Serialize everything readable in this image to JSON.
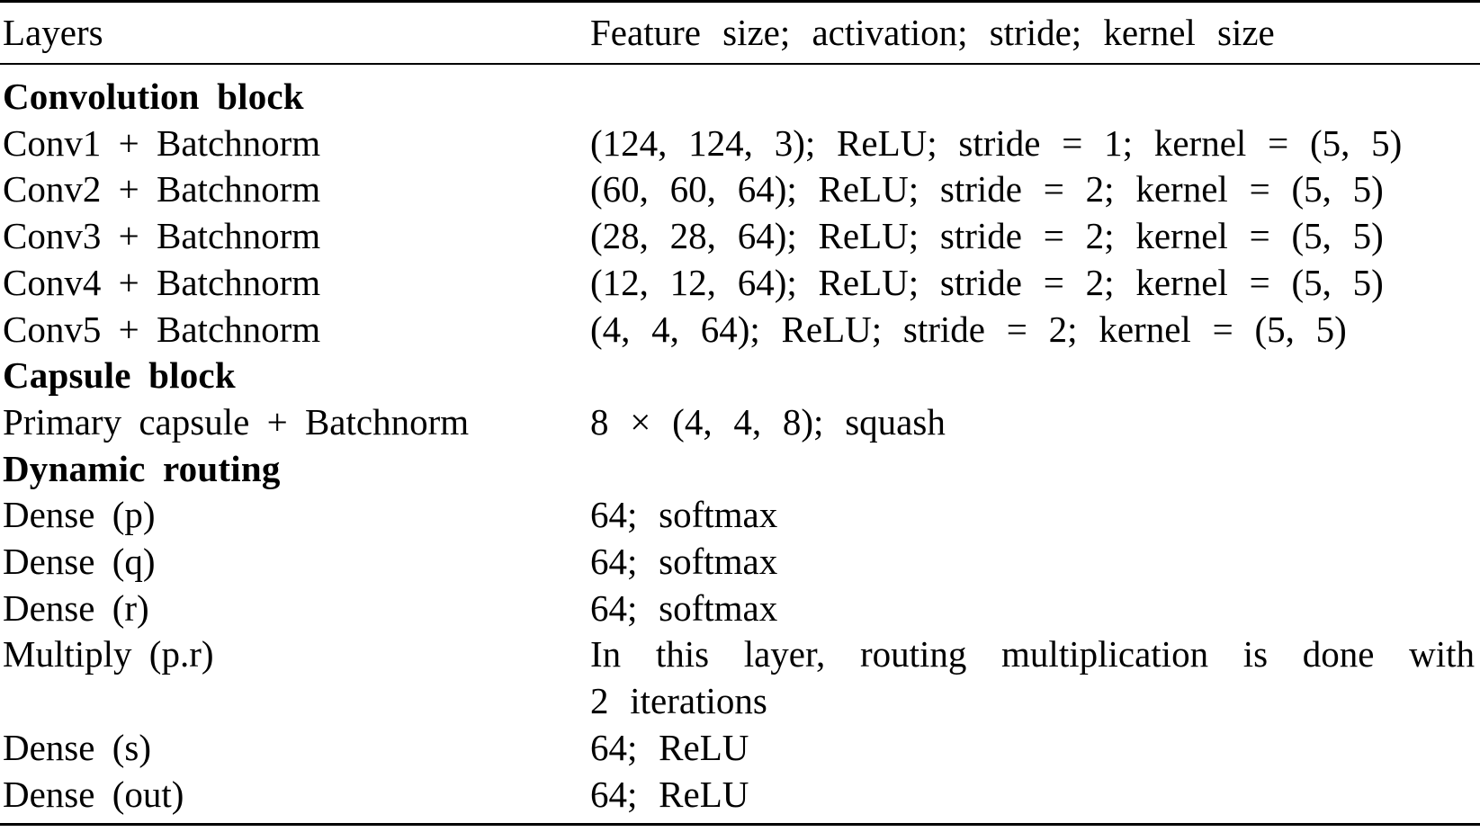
{
  "table": {
    "header": {
      "layers": "Layers",
      "feature": "Feature size; activation; stride; kernel size"
    },
    "rows": [
      {
        "type": "section",
        "layer": "Convolution block",
        "value": ""
      },
      {
        "type": "data",
        "layer": "Conv1 + Batchnorm",
        "value": "(124, 124, 3); ReLU; stride = 1; kernel = (5, 5)"
      },
      {
        "type": "data",
        "layer": "Conv2 + Batchnorm",
        "value": "(60, 60, 64); ReLU; stride = 2; kernel = (5, 5)"
      },
      {
        "type": "data",
        "layer": "Conv3 + Batchnorm",
        "value": "(28, 28, 64); ReLU; stride = 2; kernel = (5, 5)"
      },
      {
        "type": "data",
        "layer": "Conv4 + Batchnorm",
        "value": "(12, 12, 64); ReLU; stride = 2; kernel = (5, 5)"
      },
      {
        "type": "data",
        "layer": "Conv5 + Batchnorm",
        "value": "(4, 4, 64); ReLU; stride = 2; kernel = (5, 5)"
      },
      {
        "type": "section",
        "layer": "Capsule block",
        "value": ""
      },
      {
        "type": "data",
        "layer": "Primary capsule + Batchnorm",
        "value": "8 × (4, 4, 8); squash"
      },
      {
        "type": "section",
        "layer": "Dynamic routing",
        "value": ""
      },
      {
        "type": "data",
        "layer": "Dense (p)",
        "value": "64; softmax"
      },
      {
        "type": "data",
        "layer": "Dense (q)",
        "value": "64; softmax"
      },
      {
        "type": "data",
        "layer": "Dense (r)",
        "value": "64; softmax"
      },
      {
        "type": "data",
        "layer": "Multiply (p.r)",
        "value": "In this layer, routing multiplication is done with",
        "value2": "2 iterations"
      },
      {
        "type": "data",
        "layer": "Dense (s)",
        "value": "64; ReLU"
      },
      {
        "type": "data",
        "layer": "Dense (out)",
        "value": "64; ReLU"
      }
    ],
    "colors": {
      "text": "#000000",
      "background": "#ffffff",
      "rule": "#000000"
    }
  }
}
